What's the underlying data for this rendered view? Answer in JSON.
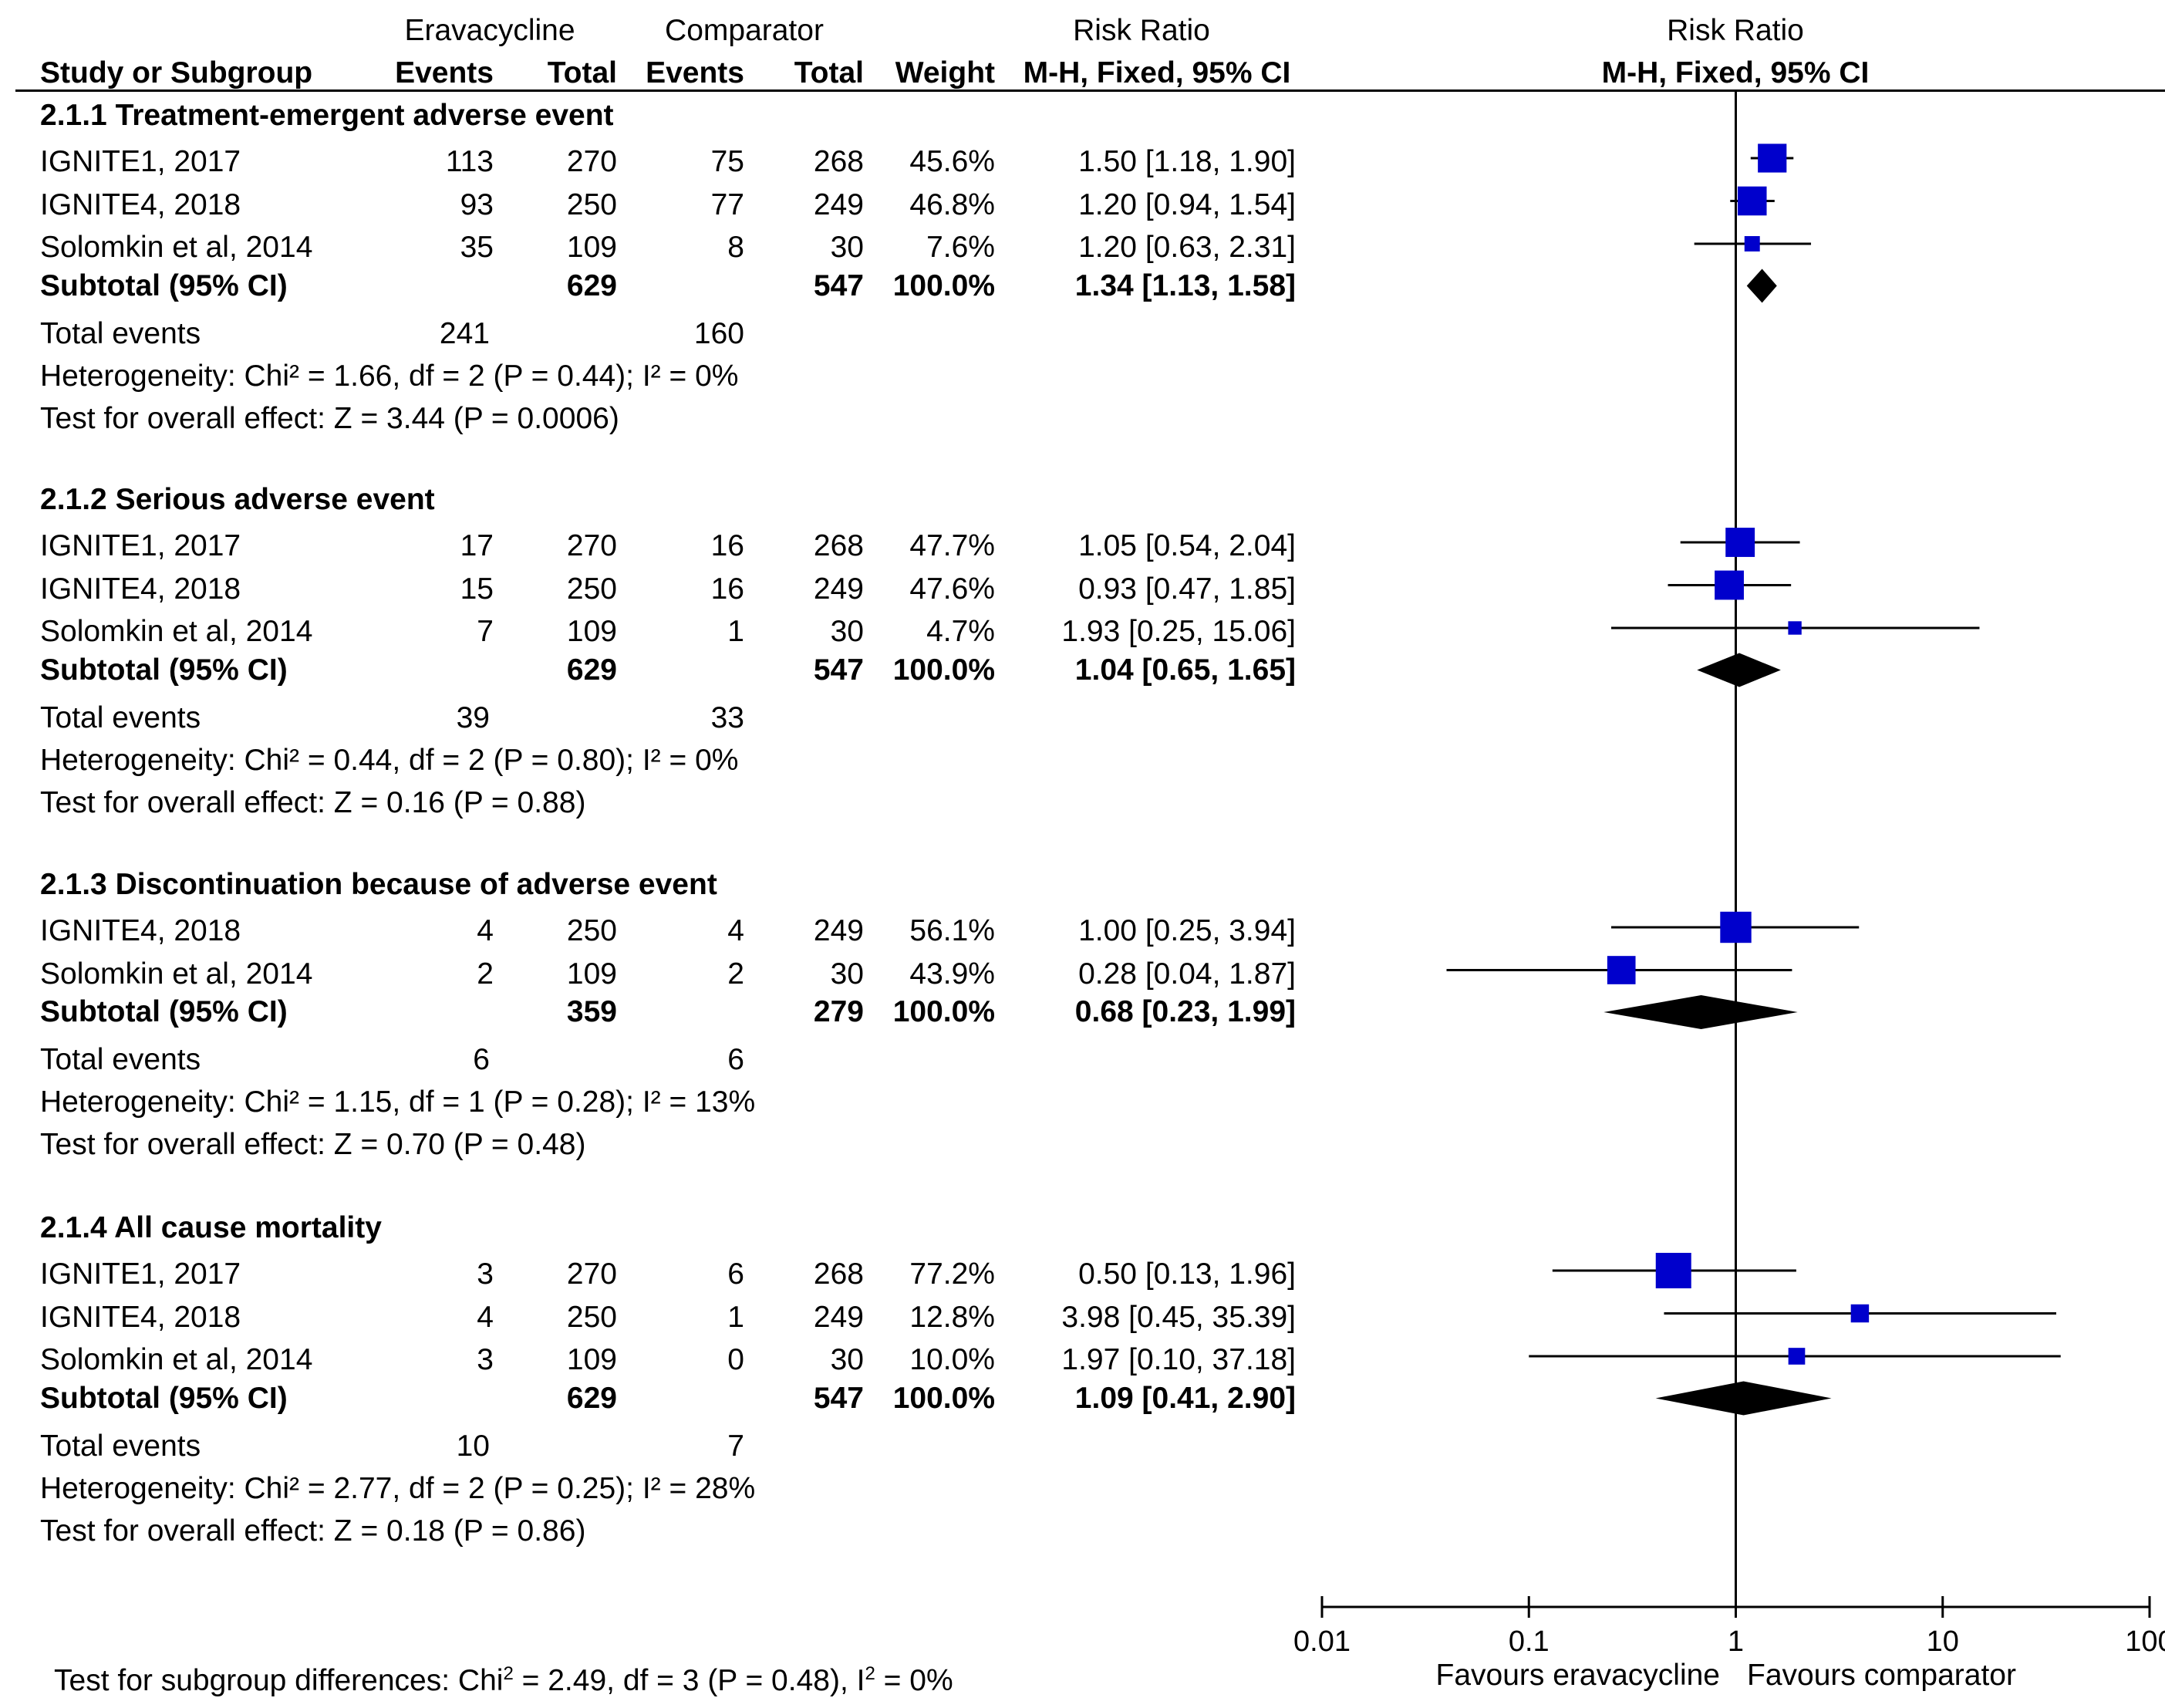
{
  "header": {
    "group1": "Eravacycline",
    "group2": "Comparator",
    "rr_header": "Risk Ratio",
    "plot_header": "Risk Ratio",
    "study_col": "Study or Subgroup",
    "events1": "Events",
    "total1": "Total",
    "events2": "Events",
    "total2": "Total",
    "weight": "Weight",
    "method": "M-H, Fixed, 95% CI",
    "plot_method": "M-H, Fixed, 95% CI"
  },
  "subgroups": [
    {
      "title": "2.1.1 Treatment-emergent adverse event",
      "studies": [
        {
          "name": "IGNITE1, 2017",
          "e1": "113",
          "n1": "270",
          "e2": "75",
          "n2": "268",
          "weight": "45.6%",
          "ci": "1.50 [1.18, 1.90]"
        },
        {
          "name": "IGNITE4, 2018",
          "e1": "93",
          "n1": "250",
          "e2": "77",
          "n2": "249",
          "weight": "46.8%",
          "ci": "1.20 [0.94, 1.54]"
        },
        {
          "name": "Solomkin et al, 2014",
          "e1": "35",
          "n1": "109",
          "e2": "8",
          "n2": "30",
          "weight": "7.6%",
          "ci": "1.20 [0.63, 2.31]"
        }
      ],
      "subtotal": {
        "label": "Subtotal (95% CI)",
        "n1": "629",
        "n2": "547",
        "weight": "100.0%",
        "ci": "1.34 [1.13, 1.58]"
      },
      "total_events": {
        "label": "Total events",
        "e1": "241",
        "e2": "160"
      },
      "heterogeneity": "Heterogeneity: Chi² = 1.66, df = 2 (P = 0.44); I² = 0%",
      "overall": "Test for overall effect: Z = 3.44 (P = 0.0006)"
    },
    {
      "title": "2.1.2 Serious adverse event",
      "studies": [
        {
          "name": "IGNITE1, 2017",
          "e1": "17",
          "n1": "270",
          "e2": "16",
          "n2": "268",
          "weight": "47.7%",
          "ci": "1.05 [0.54, 2.04]"
        },
        {
          "name": "IGNITE4, 2018",
          "e1": "15",
          "n1": "250",
          "e2": "16",
          "n2": "249",
          "weight": "47.6%",
          "ci": "0.93 [0.47, 1.85]"
        },
        {
          "name": "Solomkin et al, 2014",
          "e1": "7",
          "n1": "109",
          "e2": "1",
          "n2": "30",
          "weight": "4.7%",
          "ci": "1.93 [0.25, 15.06]"
        }
      ],
      "subtotal": {
        "label": "Subtotal (95% CI)",
        "n1": "629",
        "n2": "547",
        "weight": "100.0%",
        "ci": "1.04 [0.65, 1.65]"
      },
      "total_events": {
        "label": "Total events",
        "e1": "39",
        "e2": "33"
      },
      "heterogeneity": "Heterogeneity: Chi² = 0.44, df = 2 (P = 0.80); I² = 0%",
      "overall": "Test for overall effect: Z = 0.16 (P = 0.88)"
    },
    {
      "title": "2.1.3 Discontinuation because of adverse event",
      "studies": [
        {
          "name": "IGNITE4, 2018",
          "e1": "4",
          "n1": "250",
          "e2": "4",
          "n2": "249",
          "weight": "56.1%",
          "ci": "1.00 [0.25, 3.94]"
        },
        {
          "name": "Solomkin et al, 2014",
          "e1": "2",
          "n1": "109",
          "e2": "2",
          "n2": "30",
          "weight": "43.9%",
          "ci": "0.28 [0.04, 1.87]"
        }
      ],
      "subtotal": {
        "label": "Subtotal (95% CI)",
        "n1": "359",
        "n2": "279",
        "weight": "100.0%",
        "ci": "0.68 [0.23, 1.99]"
      },
      "total_events": {
        "label": "Total events",
        "e1": "6",
        "e2": "6"
      },
      "heterogeneity": "Heterogeneity: Chi² = 1.15, df = 1 (P = 0.28); I² = 13%",
      "overall": "Test for overall effect: Z = 0.70 (P = 0.48)"
    },
    {
      "title": "2.1.4 All cause mortality",
      "studies": [
        {
          "name": "IGNITE1, 2017",
          "e1": "3",
          "n1": "270",
          "e2": "6",
          "n2": "268",
          "weight": "77.2%",
          "ci": "0.50 [0.13, 1.96]"
        },
        {
          "name": "IGNITE4, 2018",
          "e1": "4",
          "n1": "250",
          "e2": "1",
          "n2": "249",
          "weight": "12.8%",
          "ci": "3.98 [0.45, 35.39]"
        },
        {
          "name": "Solomkin et al, 2014",
          "e1": "3",
          "n1": "109",
          "e2": "0",
          "n2": "30",
          "weight": "10.0%",
          "ci": "1.97 [0.10, 37.18]"
        }
      ],
      "subtotal": {
        "label": "Subtotal (95% CI)",
        "n1": "629",
        "n2": "547",
        "weight": "100.0%",
        "ci": "1.09 [0.41, 2.90]"
      },
      "total_events": {
        "label": "Total events",
        "e1": "10",
        "e2": "7"
      },
      "heterogeneity": "Heterogeneity: Chi² = 2.77, df = 2 (P = 0.25); I² = 28%",
      "overall": "Test for overall effect: Z = 0.18 (P = 0.86)"
    }
  ],
  "footer": {
    "subgroup_test_prefix": "Test for subgroup differences: Chi",
    "subgroup_test_sup1": "2",
    "subgroup_test_mid": " = 2.49, df = 3 (P = 0.48), I",
    "subgroup_test_sup2": "2",
    "subgroup_test_suffix": " = 0%",
    "favours_left": "Favours eravacycline",
    "favours_right": "Favours comparator"
  },
  "chart_data": {
    "type": "forest",
    "title": "Risk Ratio",
    "xlabel": "M-H, Fixed, 95% CI",
    "scale": "log",
    "xlim": [
      0.01,
      100
    ],
    "ticks": [
      0.01,
      0.1,
      1,
      10,
      100
    ],
    "tick_labels": [
      "0.01",
      "0.1",
      "1",
      "10",
      "100"
    ],
    "null_line": 1,
    "marker_color": "#0000CC",
    "diamond_color": "#000000",
    "studies": [
      {
        "group": "2.1.1",
        "name": "IGNITE1, 2017",
        "rr": 1.5,
        "lo": 1.18,
        "hi": 1.9,
        "weight": 45.6
      },
      {
        "group": "2.1.1",
        "name": "IGNITE4, 2018",
        "rr": 1.2,
        "lo": 0.94,
        "hi": 1.54,
        "weight": 46.8
      },
      {
        "group": "2.1.1",
        "name": "Solomkin et al, 2014",
        "rr": 1.2,
        "lo": 0.63,
        "hi": 2.31,
        "weight": 7.6
      },
      {
        "group": "2.1.2",
        "name": "IGNITE1, 2017",
        "rr": 1.05,
        "lo": 0.54,
        "hi": 2.04,
        "weight": 47.7
      },
      {
        "group": "2.1.2",
        "name": "IGNITE4, 2018",
        "rr": 0.93,
        "lo": 0.47,
        "hi": 1.85,
        "weight": 47.6
      },
      {
        "group": "2.1.2",
        "name": "Solomkin et al, 2014",
        "rr": 1.93,
        "lo": 0.25,
        "hi": 15.06,
        "weight": 4.7
      },
      {
        "group": "2.1.3",
        "name": "IGNITE4, 2018",
        "rr": 1.0,
        "lo": 0.25,
        "hi": 3.94,
        "weight": 56.1
      },
      {
        "group": "2.1.3",
        "name": "Solomkin et al, 2014",
        "rr": 0.28,
        "lo": 0.04,
        "hi": 1.87,
        "weight": 43.9
      },
      {
        "group": "2.1.4",
        "name": "IGNITE1, 2017",
        "rr": 0.5,
        "lo": 0.13,
        "hi": 1.96,
        "weight": 77.2
      },
      {
        "group": "2.1.4",
        "name": "IGNITE4, 2018",
        "rr": 3.98,
        "lo": 0.45,
        "hi": 35.39,
        "weight": 12.8
      },
      {
        "group": "2.1.4",
        "name": "Solomkin et al, 2014",
        "rr": 1.97,
        "lo": 0.1,
        "hi": 37.18,
        "weight": 10.0
      }
    ],
    "subtotals": [
      {
        "group": "2.1.1",
        "rr": 1.34,
        "lo": 1.13,
        "hi": 1.58
      },
      {
        "group": "2.1.2",
        "rr": 1.04,
        "lo": 0.65,
        "hi": 1.65
      },
      {
        "group": "2.1.3",
        "rr": 0.68,
        "lo": 0.23,
        "hi": 1.99
      },
      {
        "group": "2.1.4",
        "rr": 1.09,
        "lo": 0.41,
        "hi": 2.9
      }
    ]
  }
}
